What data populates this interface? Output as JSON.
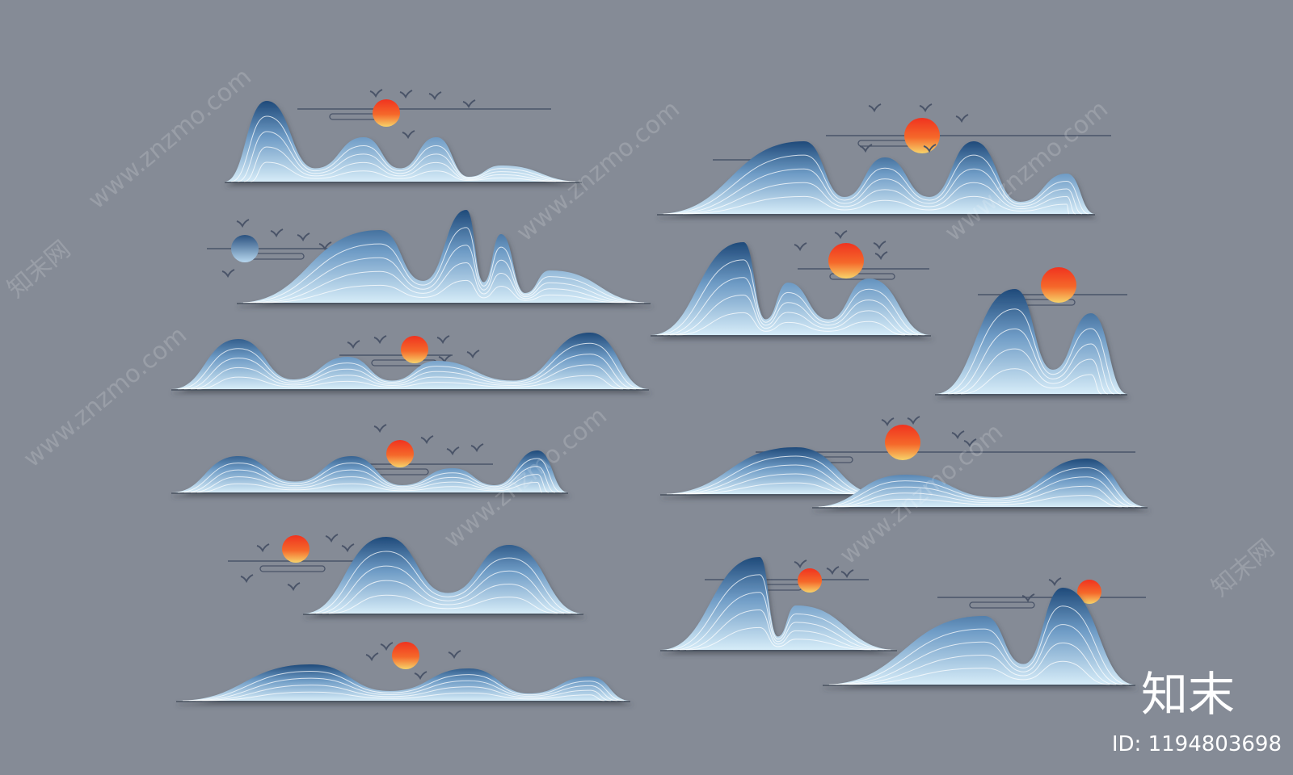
{
  "brand": "知末",
  "id_label": "ID: 1194803698",
  "watermark_site": "www.znzmo.com",
  "watermark_brand": "知末网"
}
